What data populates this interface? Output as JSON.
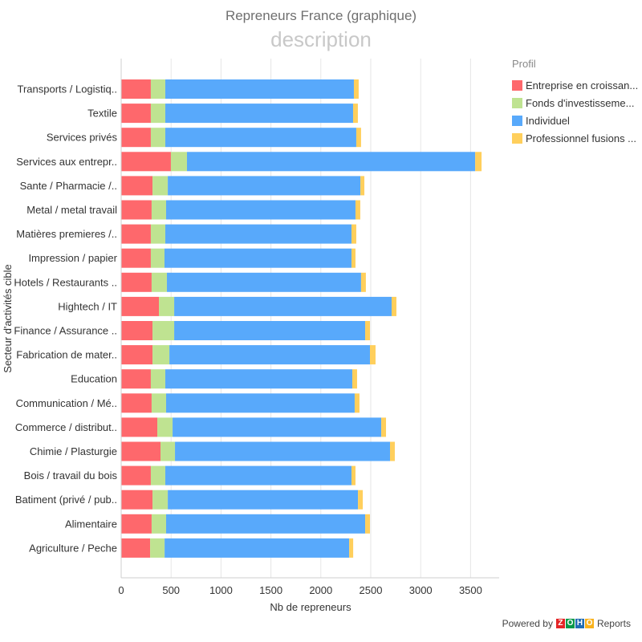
{
  "header": {
    "title": "Repreneurs France (graphique)",
    "subtitle": "description"
  },
  "legend": {
    "title": "Profil",
    "items": [
      {
        "label": "Entreprise en croissan...",
        "color": "#fe686c"
      },
      {
        "label": "Fonds d'investisseme...",
        "color": "#bfe391"
      },
      {
        "label": "Individuel",
        "color": "#58a9fb"
      },
      {
        "label": "Professionnel fusions ...",
        "color": "#ffcf5c"
      }
    ]
  },
  "footer": {
    "powered_by": "Powered by",
    "brand_letters": [
      "Z",
      "O",
      "H",
      "O"
    ],
    "brand_colors": [
      "#e42527",
      "#089949",
      "#226db4",
      "#f9b21d"
    ],
    "product": "Reports"
  },
  "chart_data": {
    "type": "bar",
    "orientation": "horizontal",
    "stacked": true,
    "title": "Repreneurs France (graphique)",
    "subtitle": "description",
    "xlabel": "Nb de repreneurs",
    "ylabel": "Secteur d'activités cible",
    "xlim": [
      0,
      3800
    ],
    "xticks": [
      0,
      500,
      1000,
      1500,
      2000,
      2500,
      3000,
      3500
    ],
    "grid": true,
    "legend_title": "Profil",
    "legend_position": "top-right",
    "categories": [
      "Transports / Logistiq..",
      "Textile",
      "Services privés",
      "Services aux entrepr..",
      "Sante / Pharmacie /..",
      "Metal / metal travail",
      "Matières premieres /..",
      "Impression / papier",
      "Hotels / Restaurants ..",
      "Hightech / IT",
      "Finance / Assurance ..",
      "Fabrication de mater..",
      "Education",
      "Communication / Mé..",
      "Commerce / distribut..",
      "Chimie / Plasturgie",
      "Bois / travail du bois",
      "Batiment (privé / pub..",
      "Alimentaire",
      "Agriculture / Peche"
    ],
    "series": [
      {
        "name": "Entreprise en croissan...",
        "color": "#fe686c",
        "values": [
          297,
          297,
          297,
          498,
          314,
          305,
          297,
          297,
          305,
          378,
          314,
          314,
          297,
          305,
          362,
          394,
          297,
          314,
          305,
          290
        ]
      },
      {
        "name": "Fonds d'investisseme...",
        "color": "#bfe391",
        "values": [
          145,
          145,
          145,
          161,
          153,
          145,
          145,
          137,
          153,
          153,
          217,
          169,
          145,
          145,
          153,
          145,
          145,
          153,
          145,
          145
        ]
      },
      {
        "name": "Individuel",
        "color": "#58a9fb",
        "values": [
          1889,
          1881,
          1913,
          2887,
          1929,
          1897,
          1865,
          1873,
          1945,
          2178,
          1913,
          2009,
          1873,
          1889,
          2090,
          2154,
          1865,
          1905,
          1994,
          1849
        ]
      },
      {
        "name": "Professionnel fusions ...",
        "color": "#ffcf5c",
        "values": [
          48,
          48,
          48,
          64,
          40,
          48,
          48,
          40,
          48,
          48,
          48,
          56,
          48,
          48,
          48,
          48,
          40,
          48,
          48,
          40
        ]
      }
    ]
  }
}
